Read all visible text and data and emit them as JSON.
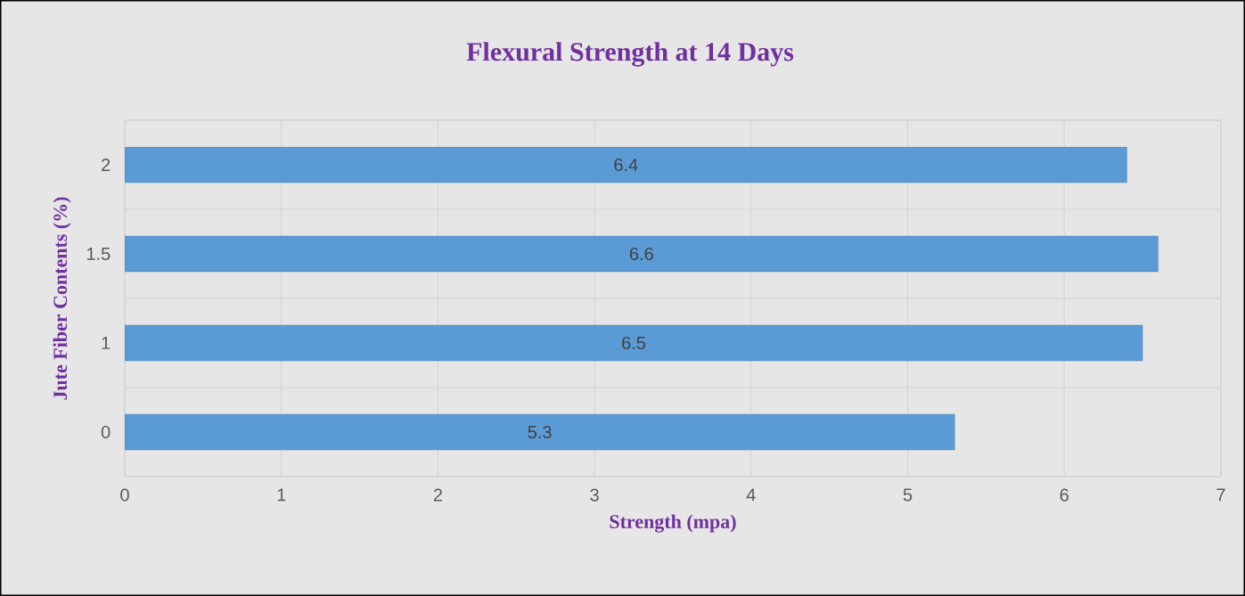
{
  "chart_data": {
    "type": "bar",
    "orientation": "horizontal",
    "title": "Flexural Strength at 14 Days",
    "xlabel": "Strength (mpa)",
    "ylabel": "Jute Fiber Contents (%)",
    "categories": [
      "2",
      "1.5",
      "1",
      "0"
    ],
    "values": [
      6.4,
      6.6,
      6.5,
      5.3
    ],
    "color": "#5b9bd5",
    "xlim": [
      0,
      7
    ],
    "xticks": [
      0,
      1,
      2,
      3,
      4,
      5,
      6,
      7
    ],
    "grid": true,
    "data_labels": true
  }
}
